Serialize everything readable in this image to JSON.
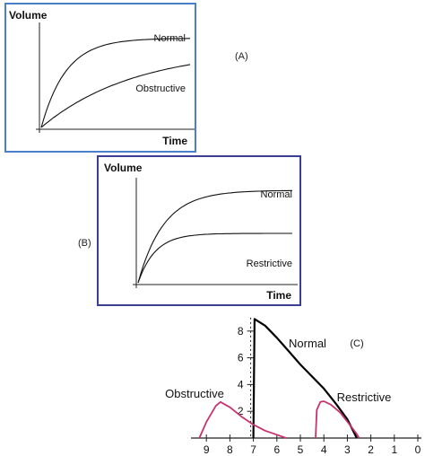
{
  "chart_data": [
    {
      "type": "line",
      "panel_label": "(A)",
      "ylabel": "Volume",
      "xlabel": "Time",
      "series": [
        {
          "name": "Normal",
          "shape": "fast-rise-plateau",
          "plateau_level": 0.88
        },
        {
          "name": "Obstructive",
          "shape": "slow-rise",
          "plateau_level": 0.62
        }
      ]
    },
    {
      "type": "line",
      "panel_label": "(B)",
      "ylabel": "Volume",
      "xlabel": "Time",
      "series": [
        {
          "name": "Normal",
          "shape": "fast-rise-plateau",
          "plateau_level": 0.88
        },
        {
          "name": "Restrictive",
          "shape": "fast-rise-low-plateau",
          "plateau_level": 0.47
        }
      ]
    },
    {
      "type": "line",
      "panel_label": "(C)",
      "x_ticks": [
        "9",
        "8",
        "7",
        "6",
        "5",
        "4",
        "3",
        "2",
        "1",
        "0"
      ],
      "y_ticks": [
        "2",
        "4",
        "6",
        "8"
      ],
      "xlim": [
        9.5,
        0
      ],
      "ylim": [
        0,
        9.2
      ],
      "series": [
        {
          "name": "Normal",
          "color": "#000000",
          "points": [
            [
              7.0,
              0
            ],
            [
              6.95,
              8.9
            ],
            [
              6.5,
              8.4
            ],
            [
              6.0,
              7.5
            ],
            [
              5.5,
              6.5
            ],
            [
              5.0,
              5.5
            ],
            [
              4.5,
              4.6
            ],
            [
              4.0,
              3.7
            ],
            [
              3.5,
              2.6
            ],
            [
              3.0,
              1.4
            ],
            [
              2.6,
              0
            ]
          ]
        },
        {
          "name": "Obstructive",
          "color": "#c8326e",
          "points": [
            [
              9.3,
              0
            ],
            [
              9.0,
              1.2
            ],
            [
              8.6,
              2.4
            ],
            [
              8.4,
              2.7
            ],
            [
              8.0,
              2.3
            ],
            [
              7.5,
              1.6
            ],
            [
              7.0,
              1.0
            ],
            [
              6.5,
              0.55
            ],
            [
              6.0,
              0.25
            ],
            [
              5.6,
              0
            ]
          ]
        },
        {
          "name": "Restrictive",
          "color": "#c8326e",
          "points": [
            [
              4.35,
              0
            ],
            [
              4.3,
              2.1
            ],
            [
              4.15,
              2.7
            ],
            [
              4.0,
              2.75
            ],
            [
              3.7,
              2.5
            ],
            [
              3.3,
              1.9
            ],
            [
              2.9,
              1.0
            ],
            [
              2.6,
              0.3
            ],
            [
              2.5,
              0
            ]
          ]
        }
      ]
    }
  ]
}
